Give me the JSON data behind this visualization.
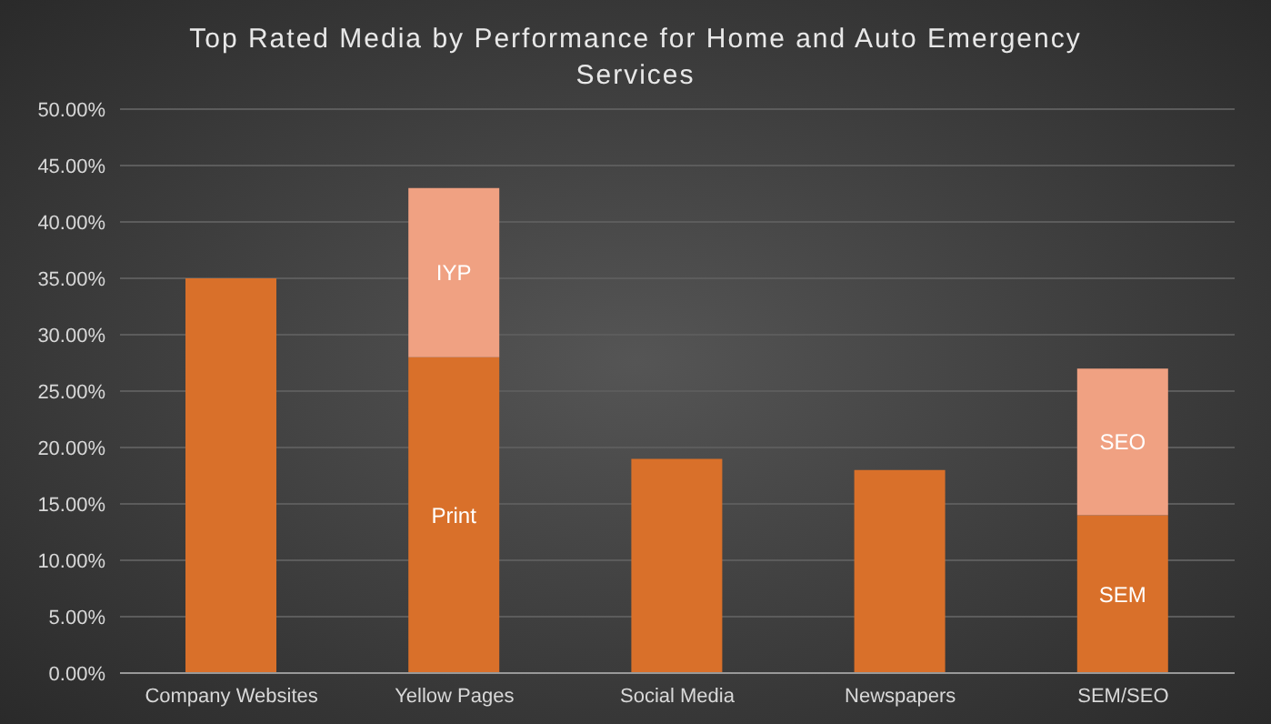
{
  "chart_data": {
    "type": "bar",
    "title": "Top Rated Media by Performance for Home and Auto Emergency Services",
    "categories": [
      "Company Websites",
      "Yellow Pages",
      "Social Media",
      "Newspapers",
      "SEM/SEO"
    ],
    "series": [
      {
        "color": "#d9702a",
        "values": [
          35,
          28,
          19,
          18,
          14
        ],
        "value_labels": [
          null,
          "Print",
          null,
          null,
          "SEM"
        ]
      },
      {
        "color": "#f0a182",
        "values": [
          null,
          15,
          null,
          null,
          13
        ],
        "value_labels": [
          null,
          "IYP",
          null,
          null,
          "SEO"
        ]
      }
    ],
    "stacked": true,
    "ylim": [
      0,
      50
    ],
    "yticks": [
      {
        "value": 0,
        "label": "0.00%"
      },
      {
        "value": 5,
        "label": "5.00%"
      },
      {
        "value": 10,
        "label": "10.00%"
      },
      {
        "value": 15,
        "label": "15.00%"
      },
      {
        "value": 20,
        "label": "20.00%"
      },
      {
        "value": 25,
        "label": "25.00%"
      },
      {
        "value": 30,
        "label": "30.00%"
      },
      {
        "value": 35,
        "label": "35.00%"
      },
      {
        "value": 40,
        "label": "40.00%"
      },
      {
        "value": 45,
        "label": "45.00%"
      },
      {
        "value": 50,
        "label": "50.00%"
      }
    ],
    "grid": "y",
    "legend": false
  }
}
